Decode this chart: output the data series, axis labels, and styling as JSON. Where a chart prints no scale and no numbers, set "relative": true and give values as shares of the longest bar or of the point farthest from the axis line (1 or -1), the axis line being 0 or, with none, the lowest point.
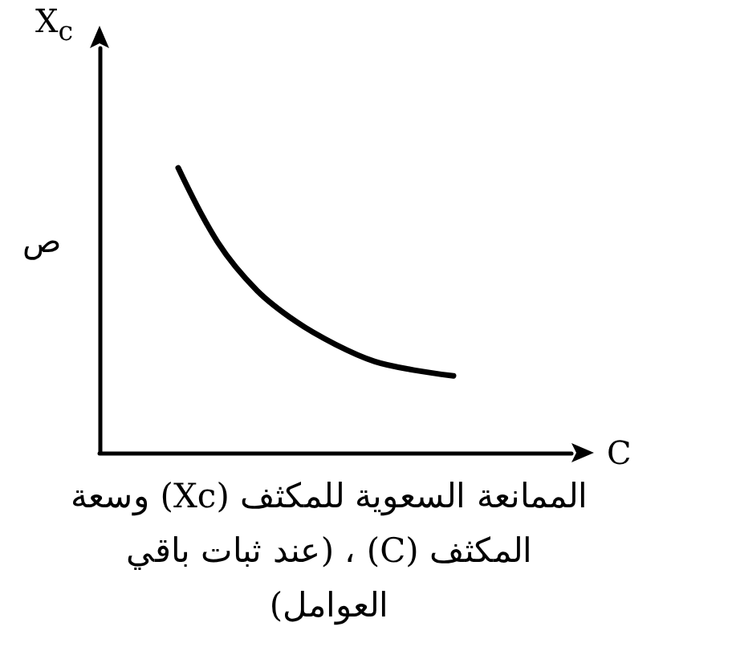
{
  "chart_data": {
    "type": "line",
    "relative": true,
    "ylabel": "X$_{c}$",
    "xlabel": "C",
    "categories": [
      null,
      null,
      null,
      null,
      null,
      null,
      null,
      null,
      null,
      null,
      null,
      null,
      null
    ],
    "series": [
      {
        "color": "#000000",
        "values": [
          null,
          null,
          1,
          0.74,
          0.57,
          0.46,
          0.38,
          0.32,
          0.29,
          0.27,
          null,
          null,
          null
        ]
      }
    ],
    "annotations": [
      "ص",
      "الممانعة السعوية للمكثف (Xc) وسعة المكثف (C) ، (عند ثبات باقي العوامل)"
    ],
    "grid": false,
    "marker": "none",
    "line_style": "solid"
  }
}
